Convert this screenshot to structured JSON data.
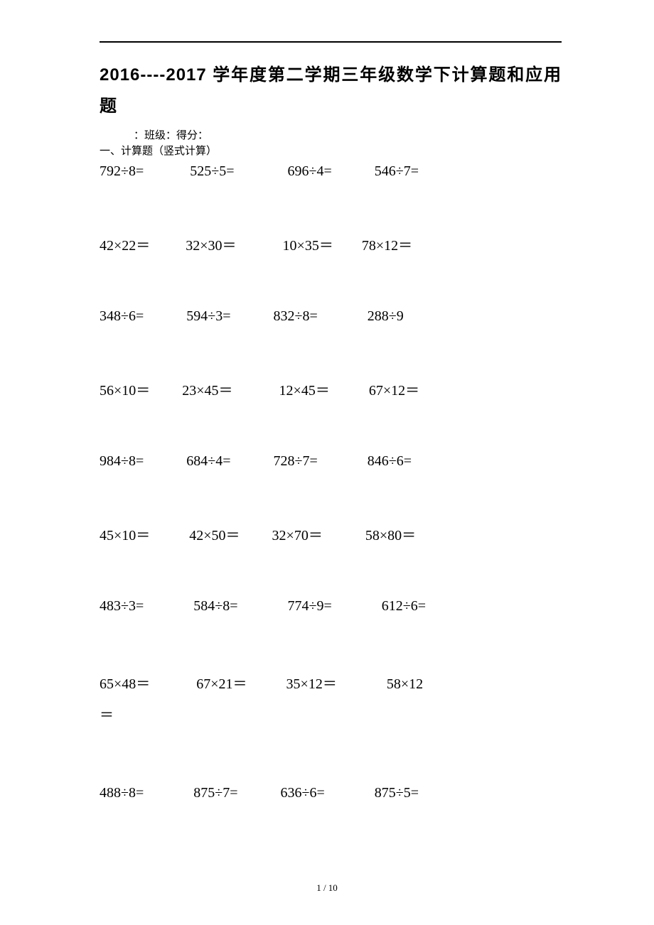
{
  "title_line1": "2016----2017 学年度第二学期三年级数学下计算题和应用",
  "title_line2": "题",
  "meta_line": "：班级：得分：",
  "section_heading": "一、计算题（竖式计算）",
  "rows": [
    "792÷8=             525÷5=               696÷4=            546÷7=",
    "42×22＝          32×30＝             10×35＝        78×12＝",
    "348÷6=            594÷3=            832÷8=              288÷9",
    "56×10＝         23×45＝             12×45＝           67×12＝",
    "984÷8=            684÷4=            728÷7=              846÷6=",
    "45×10＝           42×50＝         32×70＝            58×80＝",
    "483÷3=              584÷8=              774÷9=              612÷6=",
    "65×48＝             67×21＝           35×12＝              58×12\n＝",
    "488÷8=              875÷7=            636÷6=              875÷5="
  ],
  "page_number": "1 / 10"
}
